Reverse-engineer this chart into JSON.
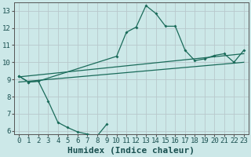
{
  "bg_color": "#cce8e8",
  "grid_color": "#b8c8cc",
  "line_color": "#1a6b5a",
  "xlabel": "Humidex (Indice chaleur)",
  "xlim": [
    -0.5,
    23.5
  ],
  "ylim": [
    5.8,
    13.5
  ],
  "xticks": [
    0,
    1,
    2,
    3,
    4,
    5,
    6,
    7,
    8,
    9,
    10,
    11,
    12,
    13,
    14,
    15,
    16,
    17,
    18,
    19,
    20,
    21,
    22,
    23
  ],
  "yticks": [
    6,
    7,
    8,
    9,
    10,
    11,
    12,
    13
  ],
  "upper_x": [
    0,
    1,
    2,
    10,
    11,
    12,
    13,
    14,
    15,
    16,
    17,
    18,
    19,
    20,
    21,
    22,
    23
  ],
  "upper_y": [
    9.2,
    8.85,
    8.9,
    10.35,
    11.75,
    12.05,
    13.3,
    12.85,
    12.1,
    12.1,
    10.7,
    10.1,
    10.2,
    10.4,
    10.5,
    10.0,
    10.7
  ],
  "lower_x": [
    0,
    1,
    2,
    3,
    4,
    5,
    6,
    7,
    8,
    9
  ],
  "lower_y": [
    9.2,
    8.85,
    8.9,
    7.75,
    6.5,
    6.2,
    5.95,
    5.82,
    5.7,
    6.4
  ],
  "line1_x": [
    0,
    23
  ],
  "line1_y": [
    9.15,
    10.5
  ],
  "line2_x": [
    0,
    23
  ],
  "line2_y": [
    8.85,
    10.0
  ],
  "font_size_label": 8,
  "font_size_tick": 6.5
}
